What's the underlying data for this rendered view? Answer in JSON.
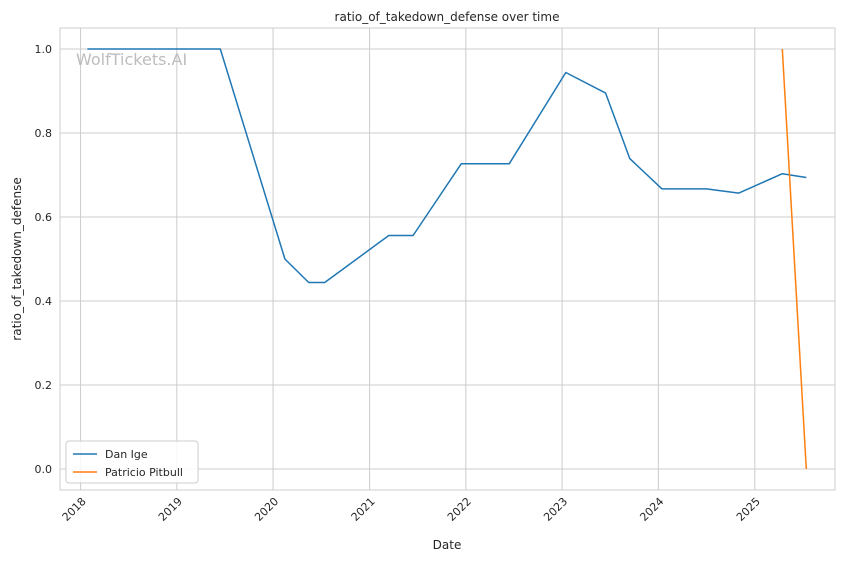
{
  "chart_data": {
    "type": "line",
    "title": "ratio_of_takedown_defense over time",
    "xlabel": "Date",
    "ylabel": "ratio_of_takedown_defense",
    "watermark": "WolfTickets.AI",
    "x_ticks": [
      "2018",
      "2019",
      "2020",
      "2021",
      "2022",
      "2023",
      "2024",
      "2025"
    ],
    "y_ticks": [
      "0.0",
      "0.2",
      "0.4",
      "0.6",
      "0.8",
      "1.0"
    ],
    "xlim": [
      "2017-10-15",
      "2025-11-01"
    ],
    "ylim": [
      -0.05,
      1.05
    ],
    "grid": true,
    "legend_position": "lower-left",
    "series": [
      {
        "name": "Dan Ige",
        "color": "#1f77b4",
        "points": [
          [
            "2018-01-27",
            1.0
          ],
          [
            "2019-06-15",
            1.0
          ],
          [
            "2020-02-15",
            0.5
          ],
          [
            "2020-05-15",
            0.444
          ],
          [
            "2020-07-15",
            0.444
          ],
          [
            "2021-03-15",
            0.556
          ],
          [
            "2021-06-15",
            0.556
          ],
          [
            "2021-12-15",
            0.727
          ],
          [
            "2022-06-15",
            0.727
          ],
          [
            "2023-01-15",
            0.944
          ],
          [
            "2023-06-15",
            0.895
          ],
          [
            "2023-09-15",
            0.739
          ],
          [
            "2024-01-15",
            0.667
          ],
          [
            "2024-07-01",
            0.667
          ],
          [
            "2024-11-01",
            0.657
          ],
          [
            "2025-04-15",
            0.703
          ],
          [
            "2025-07-15",
            0.694
          ]
        ]
      },
      {
        "name": "Patricio Pitbull",
        "color": "#ff7f0e",
        "points": [
          [
            "2025-04-15",
            1.0
          ],
          [
            "2025-07-15",
            0.0
          ]
        ]
      }
    ]
  }
}
